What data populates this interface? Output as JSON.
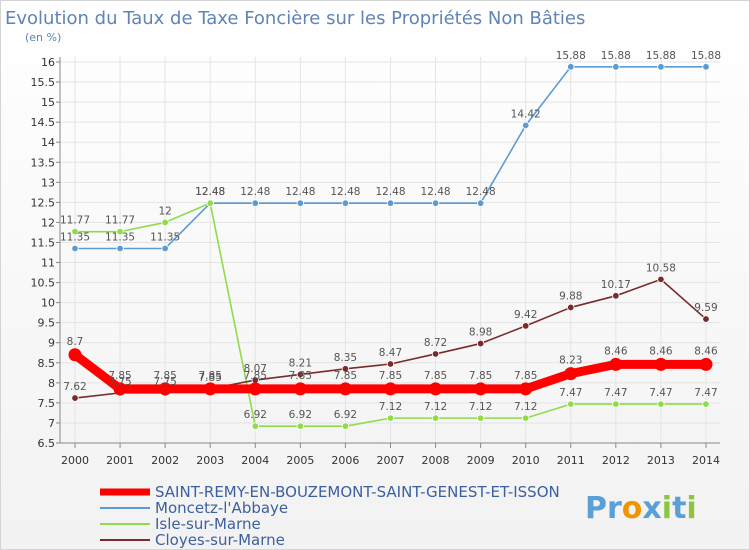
{
  "chart_data": {
    "type": "line",
    "title": "Evolution du Taux de Taxe Foncière sur les Propriétés Non Bâties",
    "subtitle": "(en %)",
    "x": [
      "2000",
      "2001",
      "2002",
      "2003",
      "2004",
      "2005",
      "2006",
      "2007",
      "2008",
      "2009",
      "2010",
      "2011",
      "2012",
      "2013",
      "2014"
    ],
    "ylim": [
      6.5,
      16
    ],
    "yticks": [
      "6.5",
      "7",
      "7.5",
      "8",
      "8.5",
      "9",
      "9.5",
      "10",
      "10.5",
      "11",
      "11.5",
      "12",
      "12.5",
      "13",
      "13.5",
      "14",
      "14.5",
      "15",
      "15.5",
      "16"
    ],
    "series": [
      {
        "name": "SAINT-REMY-EN-BOUZEMONT-SAINT-GENEST-ET-ISSON",
        "color": "#ff0000",
        "values": [
          8.7,
          7.85,
          7.85,
          7.85,
          7.85,
          7.85,
          7.85,
          7.85,
          7.85,
          7.85,
          7.85,
          8.23,
          8.46,
          8.46,
          8.46
        ],
        "labels": [
          "8.7",
          "7.85",
          "7.85",
          "7.85",
          "7.85",
          "7.85",
          "7.85",
          "7.85",
          "7.85",
          "7.85",
          "7.85",
          "8.23",
          "8.46",
          "8.46",
          "8.46"
        ]
      },
      {
        "name": "Moncetz-l'Abbaye",
        "color": "#5b9bd5",
        "values": [
          11.35,
          11.35,
          11.35,
          12.48,
          12.48,
          12.48,
          12.48,
          12.48,
          12.48,
          12.48,
          14.42,
          15.88,
          15.88,
          15.88,
          15.88
        ],
        "labels": [
          "11.35",
          "11.35",
          "11.35",
          "12.48",
          "12.48",
          "12.48",
          "12.48",
          "12.48",
          "12.48",
          "12.48",
          "14.42",
          "15.88",
          "15.88",
          "15.88",
          "15.88"
        ]
      },
      {
        "name": "Isle-sur-Marne",
        "color": "#8fdc4b",
        "values": [
          11.77,
          11.77,
          12,
          12.48,
          6.92,
          6.92,
          6.92,
          7.12,
          7.12,
          7.12,
          7.12,
          7.47,
          7.47,
          7.47,
          7.47
        ],
        "labels": [
          "11.77",
          "11.77",
          "12",
          "12.48",
          "6.92",
          "6.92",
          "6.92",
          "7.12",
          "7.12",
          "7.12",
          "7.12",
          "7.47",
          "7.47",
          "7.47",
          "7.47"
        ]
      },
      {
        "name": "Cloyes-sur-Marne",
        "color": "#7a2a2a",
        "values": [
          7.62,
          7.75,
          7.75,
          7.85,
          8.07,
          8.21,
          8.35,
          8.47,
          8.72,
          8.98,
          9.42,
          9.88,
          10.17,
          10.58,
          9.59
        ],
        "labels": [
          "7.62",
          "7.75",
          "7.75",
          "7.85",
          "8.07",
          "8.21",
          "8.35",
          "8.47",
          "8.72",
          "8.98",
          "9.42",
          "9.88",
          "10.17",
          "10.58",
          "9.59"
        ]
      }
    ]
  },
  "brand": {
    "letters": [
      "P",
      "r",
      "o",
      "x",
      "i",
      "t",
      "i"
    ],
    "colors": [
      "#5a9fd6",
      "#5a9fd6",
      "#f29400",
      "#5a9fd6",
      "#8cc63f",
      "#5a9fd6",
      "#8cc63f"
    ]
  }
}
